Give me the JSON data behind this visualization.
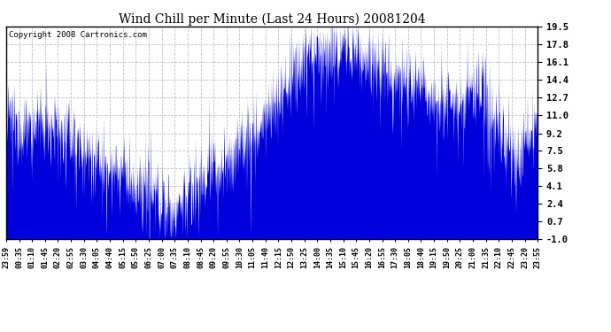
{
  "title": "Wind Chill per Minute (Last 24 Hours) 20081204",
  "copyright": "Copyright 2008 Cartronics.com",
  "line_color": "#0000dd",
  "fill_color": "#0000dd",
  "bg_color": "#ffffff",
  "plot_bg_color": "#ffffff",
  "grid_color": "#bbbbbb",
  "yticks": [
    -1.0,
    0.7,
    2.4,
    4.1,
    5.8,
    7.5,
    9.2,
    11.0,
    12.7,
    14.4,
    16.1,
    17.8,
    19.5
  ],
  "ylim": [
    -1.0,
    19.5
  ],
  "x_labels": [
    "23:59",
    "00:35",
    "01:10",
    "01:45",
    "02:20",
    "02:55",
    "03:30",
    "04:05",
    "04:40",
    "05:15",
    "05:50",
    "06:25",
    "07:00",
    "07:35",
    "08:10",
    "08:45",
    "09:20",
    "09:55",
    "10:30",
    "11:05",
    "11:40",
    "12:15",
    "12:50",
    "13:25",
    "14:00",
    "14:35",
    "15:10",
    "15:45",
    "16:20",
    "16:55",
    "17:30",
    "18:05",
    "18:40",
    "19:15",
    "19:50",
    "20:25",
    "21:00",
    "21:35",
    "22:10",
    "22:45",
    "23:20",
    "23:55"
  ]
}
